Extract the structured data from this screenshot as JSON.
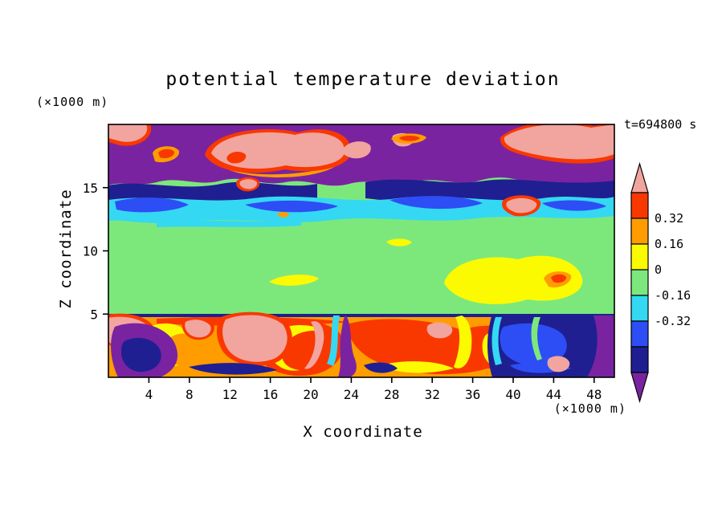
{
  "chart_data": {
    "type": "heatmap",
    "title": "potential temperature deviation",
    "time": "t=694800 s",
    "xlabel": "X coordinate",
    "ylabel": "Z coordinate",
    "x_unit": "(×1000 m)",
    "y_unit": "(×1000 m)",
    "x_range": [
      0,
      50
    ],
    "y_range": [
      0,
      20
    ],
    "x_ticks": [
      4,
      8,
      12,
      16,
      20,
      24,
      28,
      32,
      36,
      40,
      44,
      48
    ],
    "y_ticks": [
      5,
      10,
      15
    ],
    "grid": false,
    "legend_position": "right-colorbar",
    "palette": {
      "pink": "#f2a49e",
      "red": "#f93800",
      "orange": "#ff9c00",
      "yellow": "#fcfa00",
      "green": "#7ce87c",
      "cyan": "#35d8f2",
      "blue": "#2d4ef5",
      "navy": "#1f1f92",
      "purple": "#7a23a0"
    },
    "colorbar": {
      "boundary_labels": [
        "0.32",
        "0.16",
        "0",
        "-0.16",
        "-0.32"
      ],
      "cells": [
        {
          "color": "red",
          "range": [
            0.32,
            0.48
          ]
        },
        {
          "color": "orange",
          "range": [
            0.16,
            0.32
          ]
        },
        {
          "color": "yellow",
          "range": [
            0,
            0.16
          ]
        },
        {
          "color": "green",
          "range": [
            -0.16,
            0
          ]
        },
        {
          "color": "cyan",
          "range": [
            -0.32,
            -0.16
          ]
        },
        {
          "color": "blue",
          "range": [
            -0.48,
            -0.32
          ]
        },
        {
          "color": "navy",
          "range": [
            -0.64,
            -0.48
          ]
        }
      ],
      "arrow_top": {
        "color": "pink",
        "meaning": "> 0.48"
      },
      "arrow_bottom": {
        "color": "purple",
        "meaning": "< -0.64"
      }
    },
    "features": [
      "upper layer z ~ 15-20 km: strong negative deviation (purple) with pockets of strong positive anomaly (pink) rimmed by red/orange",
      "thin cyan/blue band near z ~ 14 km (deviation ~ -0.2)",
      "mid layer z ~ 5-13 km: near-zero deviation (green) with weak positive yellow patches around x ~ 33-47 km and a small red spot near x ~ 44 km",
      "boundary layer z < 5 km: turbulent mix of strong positive plumes (red/orange/yellow/pink) and strong negative downdrafts (blue/navy/purple), large negative region x ~ 38-50 km"
    ]
  }
}
